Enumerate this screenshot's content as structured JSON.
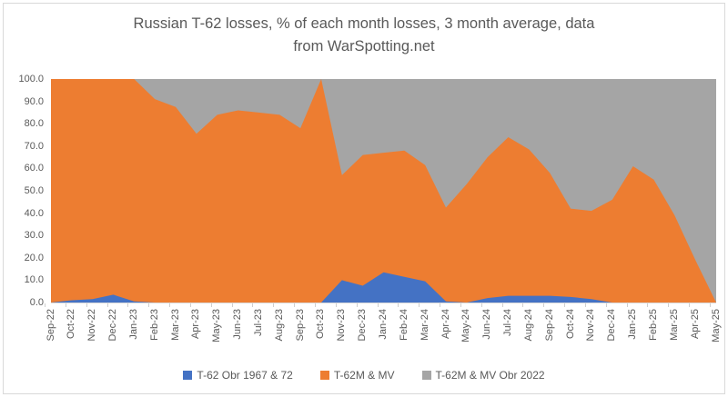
{
  "window": {
    "background": "#ffffff",
    "frame_border_color": "#d9d9d9"
  },
  "colors": {
    "text": "#595959",
    "axis_line": "#d9d9d9",
    "tick_mark": "#cfcfcf"
  },
  "chart_data": {
    "type": "area",
    "stacked": true,
    "percent_stack_total": 100,
    "title": "Russian T-62 losses, % of each month losses, 3 month average, data from WarSpotting.net",
    "title_lines": [
      "Russian T-62 losses, % of each month losses, 3 month average, data",
      "from WarSpotting.net"
    ],
    "gridlines": false,
    "legend_position": "bottom",
    "categories": [
      "Sep-22",
      "Oct-22",
      "Nov-22",
      "Dec-22",
      "Jan-23",
      "Feb-23",
      "Mar-23",
      "Apr-23",
      "May-23",
      "Jun-23",
      "Jul-23",
      "Aug-23",
      "Sep-23",
      "Oct-23",
      "Nov-23",
      "Dec-23",
      "Jan-24",
      "Feb-24",
      "Mar-24",
      "Apr-24",
      "May-24",
      "Jun-24",
      "Jul-24",
      "Aug-24",
      "Sep-24",
      "Oct-24",
      "Nov-24",
      "Dec-24",
      "Jan-25",
      "Feb-25",
      "Mar-25",
      "Apr-25",
      "May-25"
    ],
    "series": [
      {
        "name": "T-62 Obr 1967 & 72",
        "color": "#4472C4",
        "values": [
          0,
          1,
          1.5,
          3.5,
          0.5,
          0,
          0,
          0,
          0,
          0,
          0,
          0,
          0,
          0,
          10,
          7.5,
          13.5,
          11.5,
          9.5,
          0.5,
          0,
          2,
          3,
          3,
          3,
          2.5,
          1.5,
          0,
          0,
          0,
          0,
          0,
          0
        ]
      },
      {
        "name": "T-62M & MV",
        "color": "#ED7D31",
        "values": [
          100,
          99,
          98.5,
          96.5,
          99.5,
          91,
          87.5,
          75.5,
          84,
          86,
          85,
          84,
          78,
          100,
          47,
          58.5,
          53.5,
          56.5,
          52,
          42,
          53,
          63,
          71,
          65.5,
          55,
          39.5,
          39.5,
          46,
          61,
          55,
          39,
          19,
          0
        ]
      },
      {
        "name": "T-62M & MV Obr 2022",
        "color": "#A5A5A5",
        "values": [
          0,
          0,
          0,
          0,
          0,
          9,
          12.5,
          24.5,
          16,
          14,
          15,
          16,
          22,
          0,
          43,
          34,
          33,
          32,
          38.5,
          57.5,
          47,
          35,
          26,
          31.5,
          42,
          58,
          59,
          54,
          39,
          45,
          61,
          81,
          100
        ]
      }
    ],
    "y_axis": {
      "min": 0,
      "max": 100,
      "tick_step": 10,
      "tick_labels": [
        "100.0",
        "90.0",
        "80.0",
        "70.0",
        "60.0",
        "50.0",
        "40.0",
        "30.0",
        "20.0",
        "10.0",
        "0.0"
      ]
    }
  }
}
